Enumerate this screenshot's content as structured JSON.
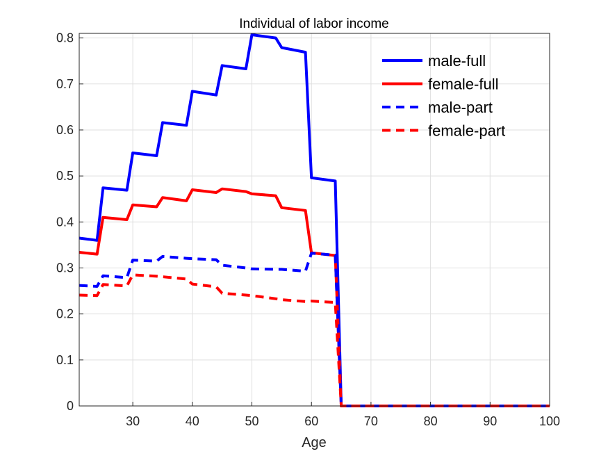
{
  "chart_data": {
    "type": "line",
    "title": "Individual of labor income",
    "xlabel": "Age",
    "ylabel": "",
    "xlim": [
      21,
      100
    ],
    "ylim": [
      0,
      0.81
    ],
    "xticks": [
      "30",
      "40",
      "50",
      "60",
      "70",
      "80",
      "90",
      "100"
    ],
    "yticks": [
      "0",
      "0.1",
      "0.2",
      "0.3",
      "0.4",
      "0.5",
      "0.6",
      "0.7",
      "0.8"
    ],
    "grid": true,
    "legend_position": "top-right",
    "series": [
      {
        "name": "male-full",
        "color": "#0000ff",
        "style": "solid",
        "points": [
          [
            21,
            0.365
          ],
          [
            24,
            0.36
          ],
          [
            25,
            0.474
          ],
          [
            29,
            0.469
          ],
          [
            30,
            0.55
          ],
          [
            34,
            0.544
          ],
          [
            35,
            0.616
          ],
          [
            39,
            0.61
          ],
          [
            40,
            0.684
          ],
          [
            44,
            0.676
          ],
          [
            45,
            0.74
          ],
          [
            49,
            0.733
          ],
          [
            50,
            0.807
          ],
          [
            54,
            0.8
          ],
          [
            55,
            0.779
          ],
          [
            59,
            0.769
          ],
          [
            60,
            0.496
          ],
          [
            64,
            0.489
          ],
          [
            65,
            0
          ],
          [
            100,
            0
          ]
        ]
      },
      {
        "name": "female-full",
        "color": "#ff0000",
        "style": "solid",
        "points": [
          [
            21,
            0.334
          ],
          [
            24,
            0.33
          ],
          [
            25,
            0.41
          ],
          [
            29,
            0.405
          ],
          [
            30,
            0.437
          ],
          [
            34,
            0.433
          ],
          [
            35,
            0.453
          ],
          [
            39,
            0.446
          ],
          [
            40,
            0.47
          ],
          [
            44,
            0.464
          ],
          [
            45,
            0.472
          ],
          [
            49,
            0.466
          ],
          [
            50,
            0.461
          ],
          [
            54,
            0.457
          ],
          [
            55,
            0.431
          ],
          [
            59,
            0.425
          ],
          [
            60,
            0.333
          ],
          [
            64,
            0.327
          ],
          [
            65,
            0
          ],
          [
            100,
            0
          ]
        ]
      },
      {
        "name": "male-part",
        "color": "#0000ff",
        "style": "dashed",
        "points": [
          [
            21,
            0.262
          ],
          [
            24,
            0.26
          ],
          [
            25,
            0.283
          ],
          [
            29,
            0.279
          ],
          [
            30,
            0.317
          ],
          [
            34,
            0.315
          ],
          [
            35,
            0.325
          ],
          [
            39,
            0.321
          ],
          [
            40,
            0.32
          ],
          [
            44,
            0.318
          ],
          [
            45,
            0.306
          ],
          [
            49,
            0.3
          ],
          [
            50,
            0.298
          ],
          [
            54,
            0.297
          ],
          [
            55,
            0.297
          ],
          [
            59,
            0.293
          ],
          [
            60,
            0.332
          ],
          [
            64,
            0.328
          ],
          [
            65,
            0
          ],
          [
            100,
            0
          ]
        ]
      },
      {
        "name": "female-part",
        "color": "#ff0000",
        "style": "dashed",
        "points": [
          [
            21,
            0.241
          ],
          [
            24,
            0.24
          ],
          [
            25,
            0.264
          ],
          [
            29,
            0.261
          ],
          [
            30,
            0.285
          ],
          [
            34,
            0.282
          ],
          [
            35,
            0.281
          ],
          [
            39,
            0.276
          ],
          [
            40,
            0.265
          ],
          [
            44,
            0.259
          ],
          [
            45,
            0.245
          ],
          [
            49,
            0.241
          ],
          [
            50,
            0.24
          ],
          [
            54,
            0.233
          ],
          [
            55,
            0.231
          ],
          [
            59,
            0.227
          ],
          [
            60,
            0.228
          ],
          [
            64,
            0.225
          ],
          [
            65,
            0
          ],
          [
            100,
            0
          ]
        ]
      }
    ]
  }
}
